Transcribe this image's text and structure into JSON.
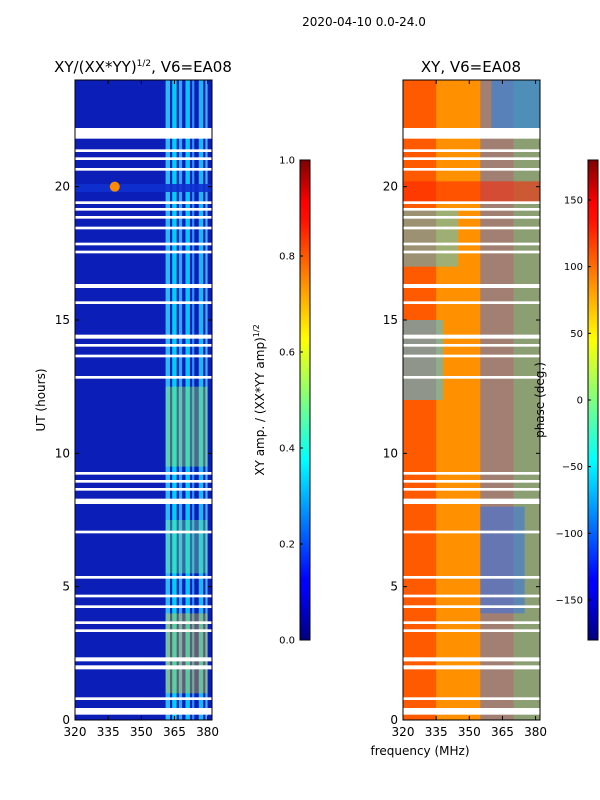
{
  "figure": {
    "suptitle": "2020-04-10 0.0-24.0",
    "xlabel": "frequency (MHz)"
  },
  "chart_data": [
    {
      "type": "heatmap",
      "title_main": "XY/(XX*YY)",
      "title_sup": "1/2",
      "title_tail": ", V6=EA08",
      "ylabel": "UT (hours)",
      "xlim": [
        320,
        382
      ],
      "ylim": [
        0,
        24
      ],
      "xticks": [
        320,
        335,
        350,
        365,
        380
      ],
      "yticks": [
        0,
        5,
        10,
        15,
        20
      ],
      "xtick_labels": [
        "320",
        "335",
        "350",
        "365",
        "380"
      ],
      "ytick_labels": [
        "0",
        "5",
        "10",
        "15",
        "20"
      ],
      "colorbar": {
        "label_main": "XY amp. / (XX*YY amp)",
        "label_sup": "1/2",
        "range": [
          0.0,
          1.0
        ],
        "ticks": [
          0.0,
          0.2,
          0.4,
          0.6,
          0.8,
          1.0
        ],
        "tick_labels": [
          "0.0",
          "0.2",
          "0.4",
          "0.6",
          "0.8",
          "1.0"
        ],
        "colormap": "jet"
      }
    },
    {
      "type": "heatmap",
      "title": "XY, V6=EA08",
      "xlim": [
        320,
        382
      ],
      "ylim": [
        0,
        24
      ],
      "xticks": [
        320,
        335,
        350,
        365,
        380
      ],
      "yticks": [
        0,
        5,
        10,
        15,
        20
      ],
      "xtick_labels": [
        "320",
        "335",
        "350",
        "365",
        "380"
      ],
      "ytick_labels": [
        "0",
        "5",
        "10",
        "15",
        "20"
      ],
      "colorbar": {
        "label": "phase (deg.)",
        "range": [
          -180,
          180
        ],
        "ticks": [
          -150,
          -100,
          -50,
          0,
          50,
          100,
          150
        ],
        "tick_labels": [
          "−150",
          "−100",
          "−50",
          "0",
          "50",
          "100",
          "150"
        ],
        "colormap": "jet"
      }
    }
  ],
  "flagged_time_ranges_hours": [
    [
      0.2,
      0.45
    ],
    [
      0.75,
      0.85
    ],
    [
      1.9,
      2.05
    ],
    [
      2.2,
      2.35
    ],
    [
      3.3,
      3.4
    ],
    [
      3.6,
      3.7
    ],
    [
      4.2,
      4.3
    ],
    [
      4.6,
      4.7
    ],
    [
      5.3,
      5.4
    ],
    [
      7.0,
      7.1
    ],
    [
      8.1,
      8.3
    ],
    [
      8.6,
      8.7
    ],
    [
      8.9,
      9.0
    ],
    [
      9.2,
      9.3
    ],
    [
      12.8,
      12.9
    ],
    [
      13.6,
      13.7
    ],
    [
      14.0,
      14.1
    ],
    [
      14.3,
      14.45
    ],
    [
      15.6,
      15.7
    ],
    [
      16.2,
      16.35
    ],
    [
      17.5,
      17.6
    ],
    [
      17.8,
      17.9
    ],
    [
      18.4,
      18.5
    ],
    [
      18.8,
      18.9
    ],
    [
      19.1,
      19.2
    ],
    [
      19.35,
      19.45
    ],
    [
      20.6,
      20.7
    ],
    [
      21.0,
      21.1
    ],
    [
      21.3,
      21.4
    ],
    [
      21.8,
      22.2
    ]
  ],
  "colors": {
    "jet_low": "#00007f",
    "jet_high": "#7f0000"
  }
}
